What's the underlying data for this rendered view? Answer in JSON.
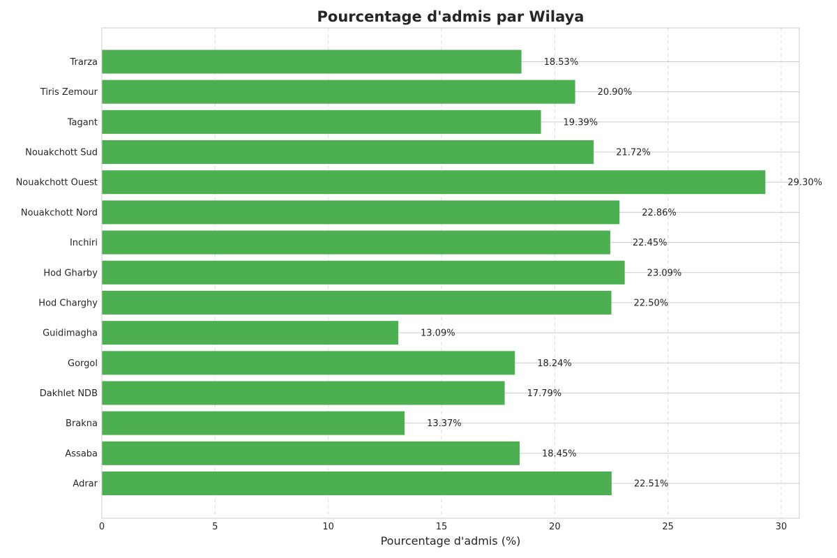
{
  "chart_data": {
    "type": "bar",
    "orientation": "horizontal",
    "title": "Pourcentage d'admis par Wilaya",
    "xlabel": "Pourcentage d'admis (%)",
    "ylabel": "",
    "xlim": [
      0,
      30.8
    ],
    "x_ticks": [
      "0",
      "5",
      "10",
      "15",
      "20",
      "25",
      "30"
    ],
    "categories": [
      "Adrar",
      "Assaba",
      "Brakna",
      "Dakhlet NDB",
      "Gorgol",
      "Guidimagha",
      "Hod Charghy",
      "Hod Gharby",
      "Inchiri",
      "Nouakchott Nord",
      "Nouakchott Ouest",
      "Nouakchott Sud",
      "Tagant",
      "Tiris Zemour",
      "Trarza"
    ],
    "values": [
      22.51,
      18.45,
      13.37,
      17.79,
      18.24,
      13.09,
      22.5,
      23.09,
      22.45,
      22.86,
      29.3,
      21.72,
      19.39,
      20.9,
      18.53
    ],
    "value_labels": [
      "22.51%",
      "18.45%",
      "13.37%",
      "17.79%",
      "18.24%",
      "13.09%",
      "22.50%",
      "23.09%",
      "22.45%",
      "22.86%",
      "29.30%",
      "21.72%",
      "19.39%",
      "20.90%",
      "18.53%"
    ],
    "bar_color": "#4caf50",
    "grid": true,
    "legend": false
  }
}
